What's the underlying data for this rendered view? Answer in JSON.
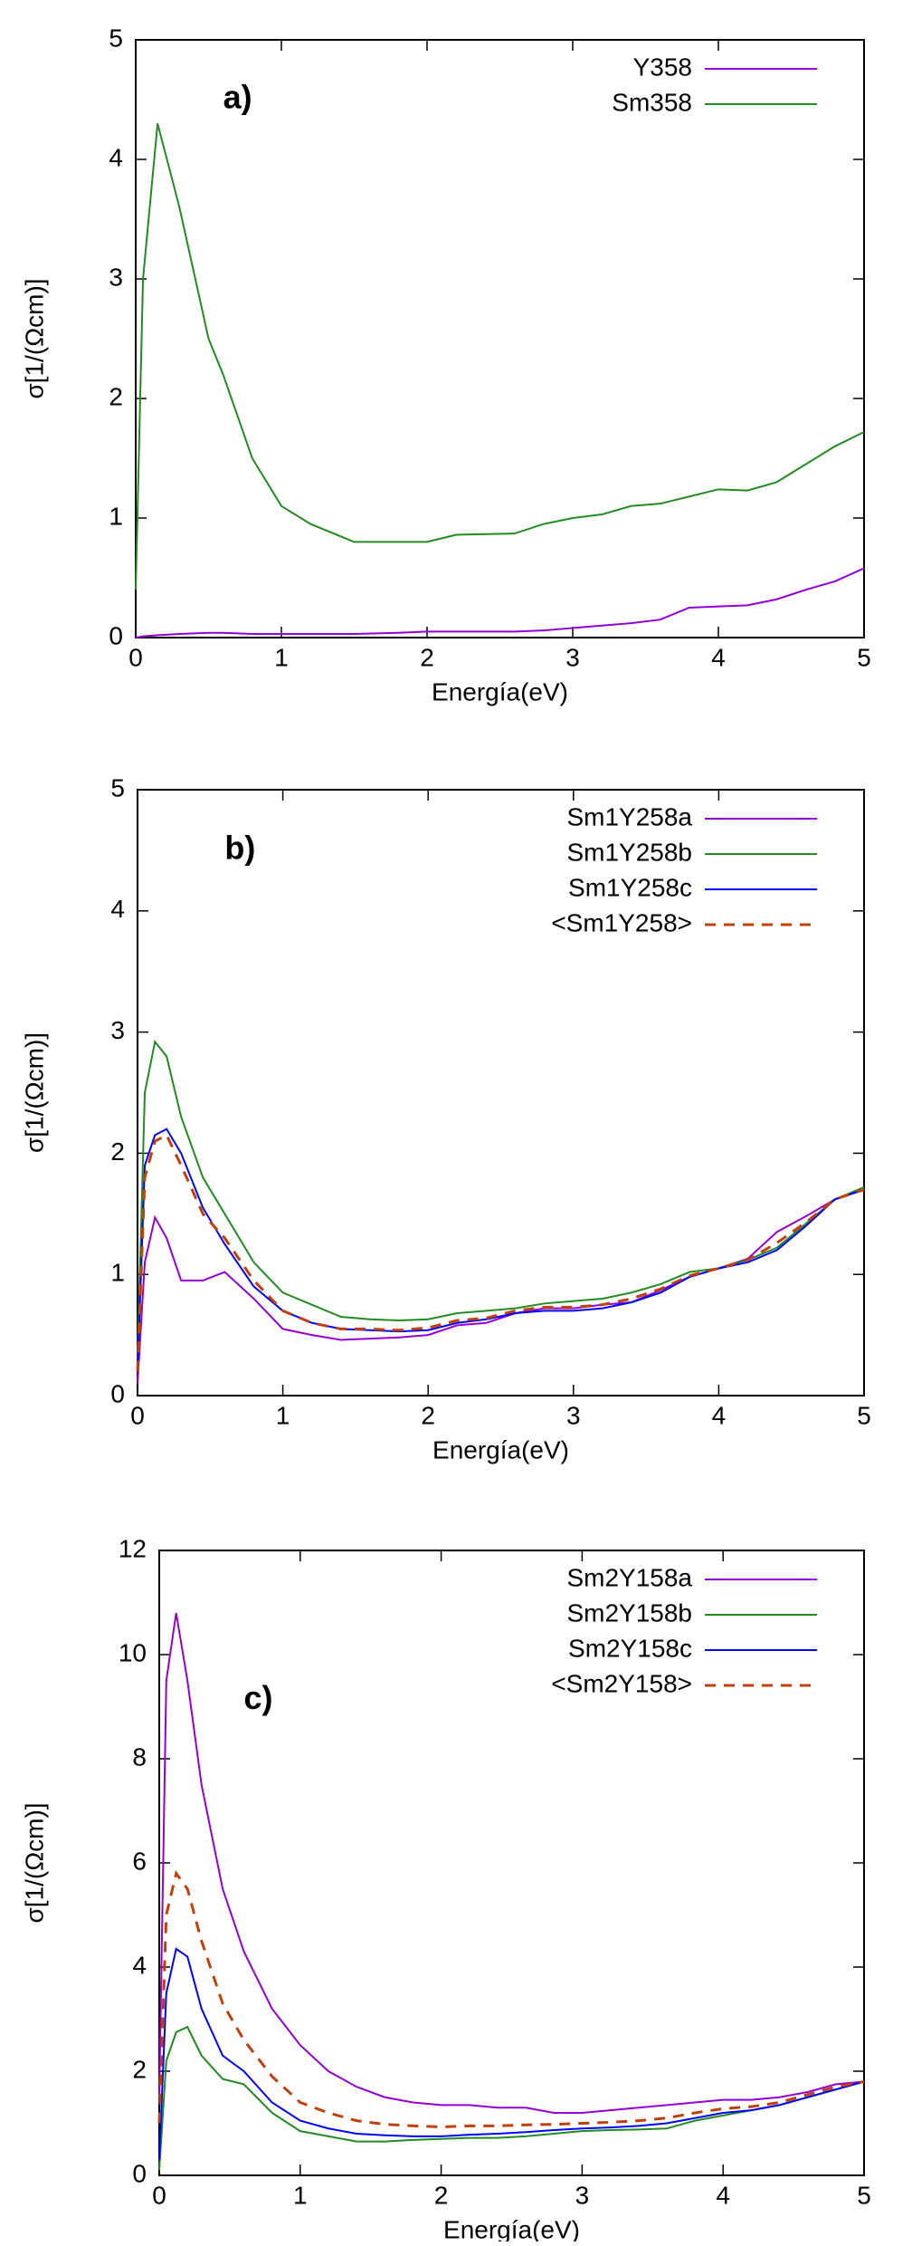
{
  "chart_data": [
    {
      "type": "line",
      "annotation": "a)",
      "xlabel": "Energía(eV)",
      "ylabel": "σ[1/(Ωcm)]",
      "x": [
        0,
        0.05,
        0.15,
        0.3,
        0.5,
        0.6,
        0.8,
        1.0,
        1.2,
        1.5,
        1.8,
        2.0,
        2.2,
        2.6,
        2.8,
        3.0,
        3.2,
        3.4,
        3.6,
        3.8,
        4.0,
        4.2,
        4.4,
        4.6,
        4.8,
        5.0
      ],
      "series": [
        {
          "name": "Y358",
          "color": "#9400d3",
          "dashed": false,
          "values": [
            0,
            0.01,
            0.02,
            0.03,
            0.04,
            0.04,
            0.03,
            0.03,
            0.03,
            0.03,
            0.04,
            0.05,
            0.05,
            0.05,
            0.06,
            0.08,
            0.1,
            0.12,
            0.15,
            0.25,
            0.26,
            0.27,
            0.32,
            0.4,
            0.47,
            0.58
          ]
        },
        {
          "name": "Sm358",
          "color": "#228b22",
          "dashed": false,
          "values": [
            0.4,
            3.0,
            4.3,
            3.6,
            2.5,
            2.2,
            1.5,
            1.1,
            0.95,
            0.8,
            0.8,
            0.8,
            0.86,
            0.87,
            0.95,
            1.0,
            1.03,
            1.1,
            1.12,
            1.18,
            1.24,
            1.23,
            1.3,
            1.45,
            1.6,
            1.72
          ]
        }
      ],
      "xlim": [
        0,
        5
      ],
      "xticks": [
        0,
        1,
        2,
        3,
        4,
        5
      ],
      "ylim": [
        0,
        5
      ],
      "yticks": [
        0,
        1,
        2,
        3,
        4,
        5
      ],
      "legend": "top-right"
    },
    {
      "type": "line",
      "annotation": "b)",
      "xlabel": "Energía(eV)",
      "ylabel": "σ[1/(Ωcm)]",
      "x": [
        0,
        0.05,
        0.12,
        0.2,
        0.3,
        0.45,
        0.6,
        0.8,
        1.0,
        1.2,
        1.4,
        1.6,
        1.8,
        2.0,
        2.2,
        2.4,
        2.6,
        2.8,
        3.0,
        3.2,
        3.4,
        3.6,
        3.8,
        4.0,
        4.2,
        4.4,
        4.6,
        4.8,
        5.0
      ],
      "series": [
        {
          "name": "Sm1Y258a",
          "color": "#9400d3",
          "dashed": false,
          "values": [
            0.1,
            1.1,
            1.47,
            1.3,
            0.95,
            0.95,
            1.02,
            0.8,
            0.55,
            0.5,
            0.46,
            0.47,
            0.48,
            0.5,
            0.58,
            0.6,
            0.68,
            0.72,
            0.72,
            0.75,
            0.77,
            0.87,
            0.98,
            1.05,
            1.13,
            1.35,
            1.48,
            1.62,
            1.7
          ]
        },
        {
          "name": "Sm1Y258b",
          "color": "#228b22",
          "dashed": false,
          "values": [
            0.3,
            2.5,
            2.92,
            2.8,
            2.3,
            1.8,
            1.5,
            1.1,
            0.85,
            0.75,
            0.65,
            0.63,
            0.62,
            0.63,
            0.68,
            0.7,
            0.72,
            0.76,
            0.78,
            0.8,
            0.85,
            0.92,
            1.02,
            1.05,
            1.12,
            1.22,
            1.42,
            1.62,
            1.72
          ]
        },
        {
          "name": "Sm1Y258c",
          "color": "#0000ff",
          "dashed": false,
          "values": [
            0.2,
            1.9,
            2.15,
            2.2,
            2.0,
            1.55,
            1.25,
            0.9,
            0.7,
            0.6,
            0.55,
            0.54,
            0.53,
            0.54,
            0.6,
            0.63,
            0.68,
            0.7,
            0.7,
            0.72,
            0.77,
            0.85,
            0.98,
            1.05,
            1.1,
            1.2,
            1.4,
            1.62,
            1.7
          ]
        },
        {
          "name": "<Sm1Y258>",
          "color": "#c0400c",
          "dashed": true,
          "values": [
            0.2,
            1.8,
            2.1,
            2.15,
            1.9,
            1.5,
            1.3,
            0.95,
            0.7,
            0.6,
            0.55,
            0.55,
            0.54,
            0.56,
            0.62,
            0.64,
            0.7,
            0.73,
            0.73,
            0.75,
            0.8,
            0.88,
            0.99,
            1.05,
            1.12,
            1.26,
            1.43,
            1.62,
            1.7
          ]
        }
      ],
      "xlim": [
        0,
        5
      ],
      "xticks": [
        0,
        1,
        2,
        3,
        4,
        5
      ],
      "ylim": [
        0,
        5
      ],
      "yticks": [
        0,
        1,
        2,
        3,
        4,
        5
      ],
      "legend": "top-right"
    },
    {
      "type": "line",
      "annotation": "c)",
      "xlabel": "Energía(eV)",
      "ylabel": "σ[1/(Ωcm)]",
      "x": [
        0,
        0.05,
        0.12,
        0.2,
        0.3,
        0.45,
        0.6,
        0.8,
        1.0,
        1.2,
        1.4,
        1.6,
        1.8,
        2.0,
        2.2,
        2.4,
        2.6,
        2.8,
        3.0,
        3.2,
        3.4,
        3.6,
        3.8,
        4.0,
        4.2,
        4.4,
        4.6,
        4.8,
        5.0
      ],
      "series": [
        {
          "name": "Sm2Y158a",
          "color": "#9400d3",
          "dashed": false,
          "values": [
            1.5,
            9.5,
            10.8,
            9.5,
            7.5,
            5.5,
            4.3,
            3.2,
            2.5,
            2.0,
            1.7,
            1.5,
            1.4,
            1.35,
            1.35,
            1.3,
            1.3,
            1.2,
            1.2,
            1.25,
            1.3,
            1.35,
            1.4,
            1.45,
            1.45,
            1.5,
            1.6,
            1.75,
            1.8
          ]
        },
        {
          "name": "Sm2Y158b",
          "color": "#228b22",
          "dashed": false,
          "values": [
            0.1,
            2.2,
            2.75,
            2.85,
            2.3,
            1.85,
            1.75,
            1.2,
            0.85,
            0.75,
            0.65,
            0.65,
            0.68,
            0.7,
            0.72,
            0.72,
            0.75,
            0.8,
            0.85,
            0.87,
            0.88,
            0.9,
            1.05,
            1.15,
            1.25,
            1.35,
            1.5,
            1.65,
            1.8
          ]
        },
        {
          "name": "Sm2Y158c",
          "color": "#0000ff",
          "dashed": false,
          "values": [
            0.3,
            3.5,
            4.35,
            4.2,
            3.2,
            2.3,
            2.0,
            1.4,
            1.05,
            0.9,
            0.8,
            0.77,
            0.75,
            0.75,
            0.78,
            0.8,
            0.83,
            0.87,
            0.9,
            0.92,
            0.95,
            1.0,
            1.1,
            1.2,
            1.25,
            1.35,
            1.5,
            1.65,
            1.8
          ]
        },
        {
          "name": "<Sm2Y158>",
          "color": "#c0400c",
          "dashed": true,
          "values": [
            1.0,
            5.0,
            5.8,
            5.5,
            4.5,
            3.3,
            2.6,
            1.9,
            1.4,
            1.2,
            1.05,
            0.98,
            0.95,
            0.93,
            0.95,
            0.95,
            0.97,
            0.98,
            1.0,
            1.02,
            1.05,
            1.1,
            1.2,
            1.28,
            1.32,
            1.4,
            1.55,
            1.7,
            1.8
          ]
        }
      ],
      "xlim": [
        0,
        5
      ],
      "xticks": [
        0,
        1,
        2,
        3,
        4,
        5
      ],
      "ylim": [
        0,
        12
      ],
      "yticks": [
        0,
        2,
        4,
        6,
        8,
        10,
        12
      ],
      "legend": "top-right"
    }
  ]
}
